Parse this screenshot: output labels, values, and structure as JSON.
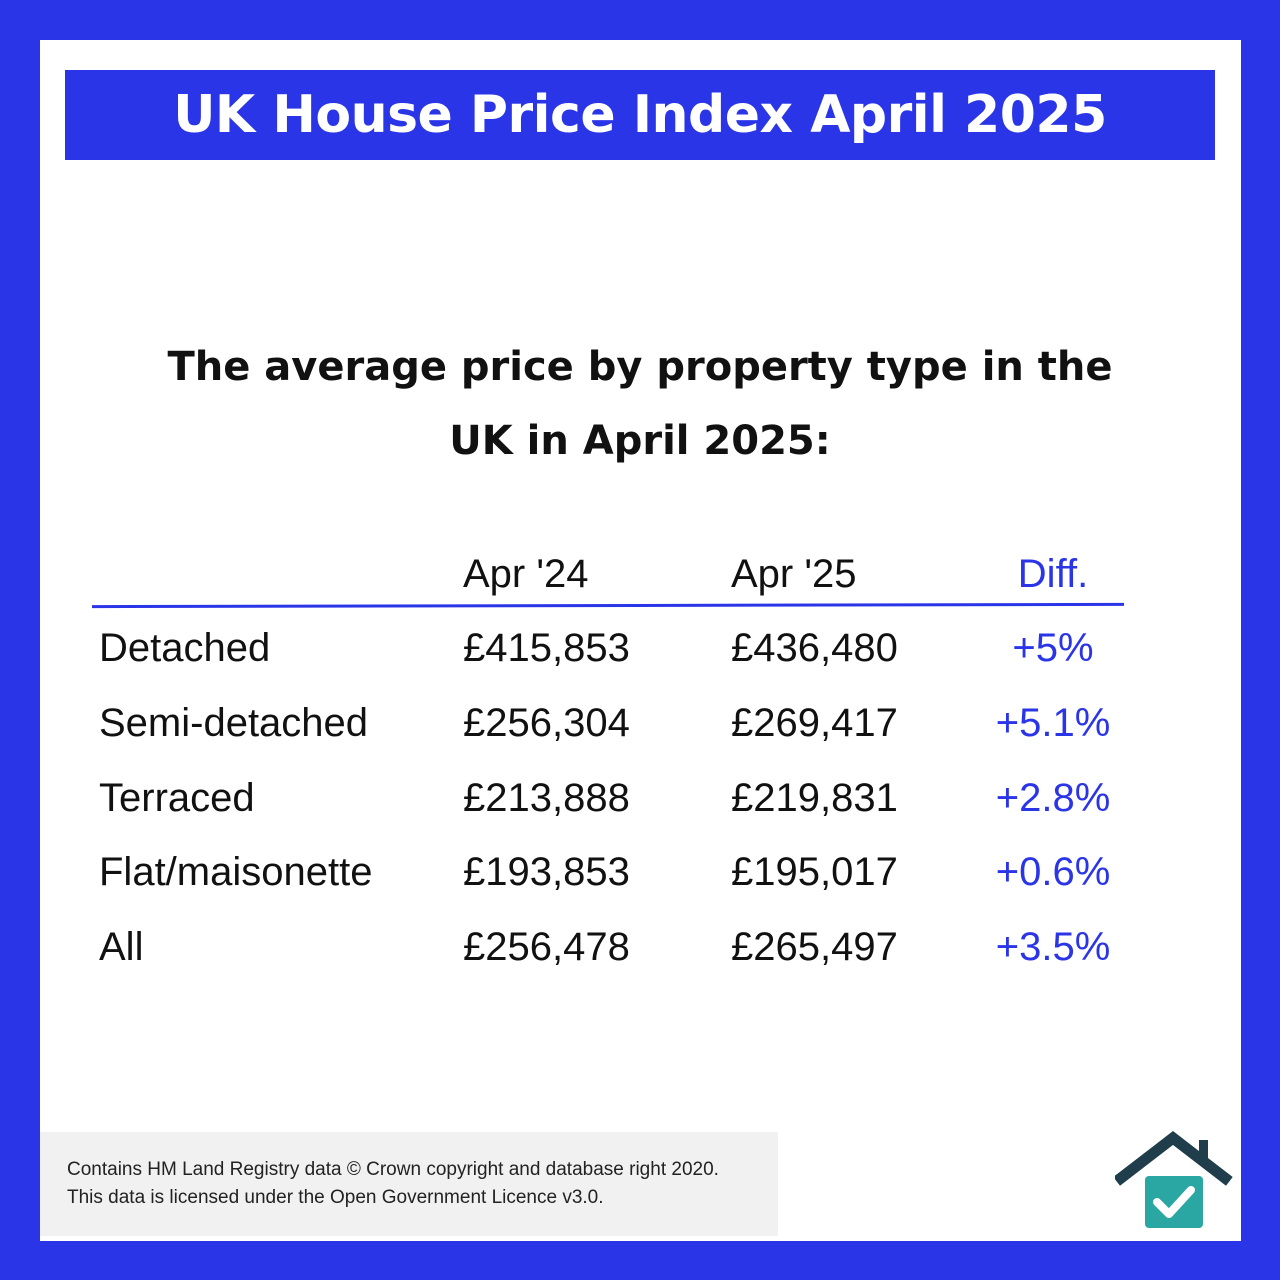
{
  "title": "UK House Price Index April 2025",
  "subtitle_line1": "The average price by property type in the",
  "subtitle_line2": "UK in April 2025:",
  "table": {
    "headers": [
      "Apr '24",
      "Apr '25",
      "Diff."
    ],
    "rows": [
      {
        "type": "Detached",
        "apr24": "£415,853",
        "apr25": "£436,480",
        "diff": "+5%"
      },
      {
        "type": "Semi-detached",
        "apr24": "£256,304",
        "apr25": "£269,417",
        "diff": "+5.1%"
      },
      {
        "type": "Terraced",
        "apr24": "£213,888",
        "apr25": "£219,831",
        "diff": "+2.8%"
      },
      {
        "type": "Flat/maisonette",
        "apr24": "£193,853",
        "apr25": "£195,017",
        "diff": "+0.6%"
      },
      {
        "type": "All",
        "apr24": "£256,478",
        "apr25": "£265,497",
        "diff": "+3.5%"
      }
    ]
  },
  "footer": {
    "line1": "Contains HM Land Registry data © Crown copyright and database right 2020.",
    "line2": "This data is licensed under the Open Government Licence v3.0."
  },
  "colors": {
    "brand_blue": "#2b35e8",
    "logo_dark": "#1f3d4a",
    "logo_teal": "#2aa7a3"
  },
  "logo_icon": "house-check-icon"
}
